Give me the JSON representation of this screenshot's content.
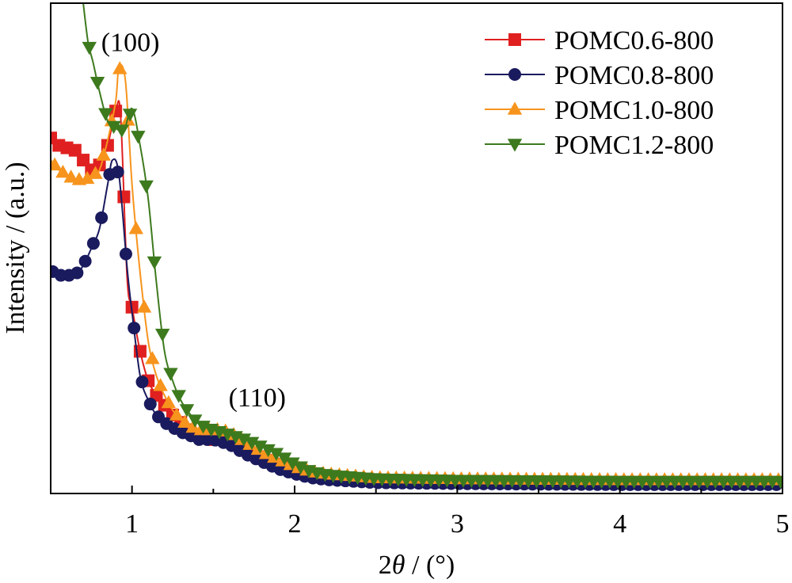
{
  "chart_data": {
    "type": "line",
    "title": "",
    "xlabel_prefix": "2",
    "xlabel_symbol": "θ",
    "xlabel_suffix": " / (°)",
    "ylabel": "Intensity / (a.u.)",
    "xlim": [
      0.5,
      5
    ],
    "ylim": [
      0,
      100
    ],
    "x_ticks": [
      1,
      2,
      3,
      4,
      5
    ],
    "x_tick_labels": [
      "1",
      "2",
      "3",
      "4",
      "5"
    ],
    "y_ticks_shown": false,
    "grid": false,
    "legend_position": "top-right",
    "annotations": [
      {
        "text": "(100)",
        "x": 0.99,
        "y": 90.2
      },
      {
        "text": "(110)",
        "x": 1.77,
        "y": 17.8
      }
    ],
    "series": [
      {
        "name": "POMC0.6-800",
        "color": "#e02020",
        "marker": "square",
        "points": [
          [
            0.5,
            72.5
          ],
          [
            0.55,
            71
          ],
          [
            0.6,
            70.5
          ],
          [
            0.65,
            70
          ],
          [
            0.7,
            68
          ],
          [
            0.75,
            66
          ],
          [
            0.8,
            67
          ],
          [
            0.85,
            71
          ],
          [
            0.9,
            78
          ],
          [
            0.93,
            77
          ],
          [
            0.97,
            44
          ],
          [
            1.0,
            38
          ],
          [
            1.05,
            29
          ],
          [
            1.1,
            23
          ],
          [
            1.15,
            20
          ],
          [
            1.2,
            18
          ],
          [
            1.25,
            16
          ],
          [
            1.3,
            14.5
          ],
          [
            1.35,
            13
          ],
          [
            1.4,
            12
          ],
          [
            1.45,
            11.5
          ],
          [
            1.5,
            11
          ],
          [
            1.55,
            11
          ],
          [
            1.6,
            11
          ],
          [
            1.65,
            10.5
          ],
          [
            1.7,
            9
          ],
          [
            1.8,
            7.5
          ],
          [
            1.9,
            6
          ],
          [
            2.0,
            4.8
          ],
          [
            2.1,
            4
          ],
          [
            2.2,
            3.5
          ],
          [
            2.5,
            2.8
          ],
          [
            3.0,
            2.5
          ],
          [
            3.5,
            2.4
          ],
          [
            4.0,
            2.3
          ],
          [
            4.5,
            2.3
          ],
          [
            5.0,
            2.3
          ]
        ]
      },
      {
        "name": "POMC0.8-800",
        "color": "#1a1a5e",
        "marker": "circle",
        "points": [
          [
            0.5,
            45.5
          ],
          [
            0.55,
            44.5
          ],
          [
            0.6,
            44.5
          ],
          [
            0.65,
            44.5
          ],
          [
            0.7,
            46.5
          ],
          [
            0.75,
            50
          ],
          [
            0.8,
            54
          ],
          [
            0.85,
            63
          ],
          [
            0.88,
            68
          ],
          [
            0.92,
            65
          ],
          [
            0.97,
            46
          ],
          [
            1.0,
            37
          ],
          [
            1.05,
            24
          ],
          [
            1.1,
            19
          ],
          [
            1.15,
            16
          ],
          [
            1.2,
            14.5
          ],
          [
            1.25,
            13.5
          ],
          [
            1.3,
            12.5
          ],
          [
            1.35,
            12
          ],
          [
            1.4,
            11
          ],
          [
            1.45,
            11
          ],
          [
            1.5,
            11
          ],
          [
            1.55,
            10.5
          ],
          [
            1.6,
            10
          ],
          [
            1.7,
            8
          ],
          [
            1.8,
            6.5
          ],
          [
            1.9,
            5
          ],
          [
            2.0,
            4
          ],
          [
            2.1,
            3.2
          ],
          [
            2.2,
            2.8
          ],
          [
            2.5,
            2.2
          ],
          [
            3.0,
            2
          ],
          [
            3.5,
            1.9
          ],
          [
            4.0,
            1.8
          ],
          [
            4.5,
            1.8
          ],
          [
            5.0,
            1.8
          ]
        ]
      },
      {
        "name": "POMC1.0-800",
        "color": "#f7941d",
        "marker": "triangle-up",
        "points": [
          [
            0.5,
            68
          ],
          [
            0.55,
            66
          ],
          [
            0.6,
            65
          ],
          [
            0.65,
            64
          ],
          [
            0.7,
            64
          ],
          [
            0.75,
            64.5
          ],
          [
            0.8,
            66
          ],
          [
            0.85,
            72
          ],
          [
            0.9,
            80
          ],
          [
            0.92,
            87
          ],
          [
            0.96,
            84
          ],
          [
            1.0,
            63
          ],
          [
            1.05,
            45
          ],
          [
            1.1,
            31
          ],
          [
            1.15,
            24
          ],
          [
            1.2,
            20
          ],
          [
            1.25,
            17
          ],
          [
            1.3,
            15
          ],
          [
            1.35,
            14
          ],
          [
            1.4,
            13
          ],
          [
            1.45,
            13
          ],
          [
            1.5,
            13
          ],
          [
            1.55,
            13
          ],
          [
            1.6,
            12.5
          ],
          [
            1.7,
            10.5
          ],
          [
            1.8,
            8.5
          ],
          [
            1.9,
            7
          ],
          [
            2.0,
            5.5
          ],
          [
            2.1,
            4.5
          ],
          [
            2.2,
            4
          ],
          [
            2.5,
            3.2
          ],
          [
            3.0,
            3
          ],
          [
            3.5,
            2.9
          ],
          [
            4.0,
            2.8
          ],
          [
            4.5,
            2.8
          ],
          [
            5.0,
            2.8
          ]
        ]
      },
      {
        "name": "POMC1.2-800",
        "color": "#3d7a1e",
        "marker": "triangle-down",
        "points": [
          [
            0.7,
            100
          ],
          [
            0.73,
            92
          ],
          [
            0.76,
            88
          ],
          [
            0.8,
            82
          ],
          [
            0.85,
            76
          ],
          [
            0.9,
            74.5
          ],
          [
            0.95,
            74
          ],
          [
            1.0,
            78.5
          ],
          [
            1.05,
            71
          ],
          [
            1.1,
            60
          ],
          [
            1.15,
            43
          ],
          [
            1.2,
            29
          ],
          [
            1.25,
            23
          ],
          [
            1.3,
            19
          ],
          [
            1.35,
            16.5
          ],
          [
            1.4,
            14.5
          ],
          [
            1.45,
            13.5
          ],
          [
            1.5,
            13
          ],
          [
            1.55,
            12.5
          ],
          [
            1.6,
            12
          ],
          [
            1.65,
            11.5
          ],
          [
            1.7,
            11
          ],
          [
            1.8,
            9.5
          ],
          [
            1.9,
            8
          ],
          [
            2.0,
            6
          ],
          [
            2.1,
            4.5
          ],
          [
            2.2,
            3.8
          ],
          [
            2.5,
            3
          ],
          [
            3.0,
            2.7
          ],
          [
            3.5,
            2.6
          ],
          [
            4.0,
            2.5
          ],
          [
            4.5,
            2.5
          ],
          [
            5.0,
            2.5
          ]
        ]
      }
    ]
  }
}
